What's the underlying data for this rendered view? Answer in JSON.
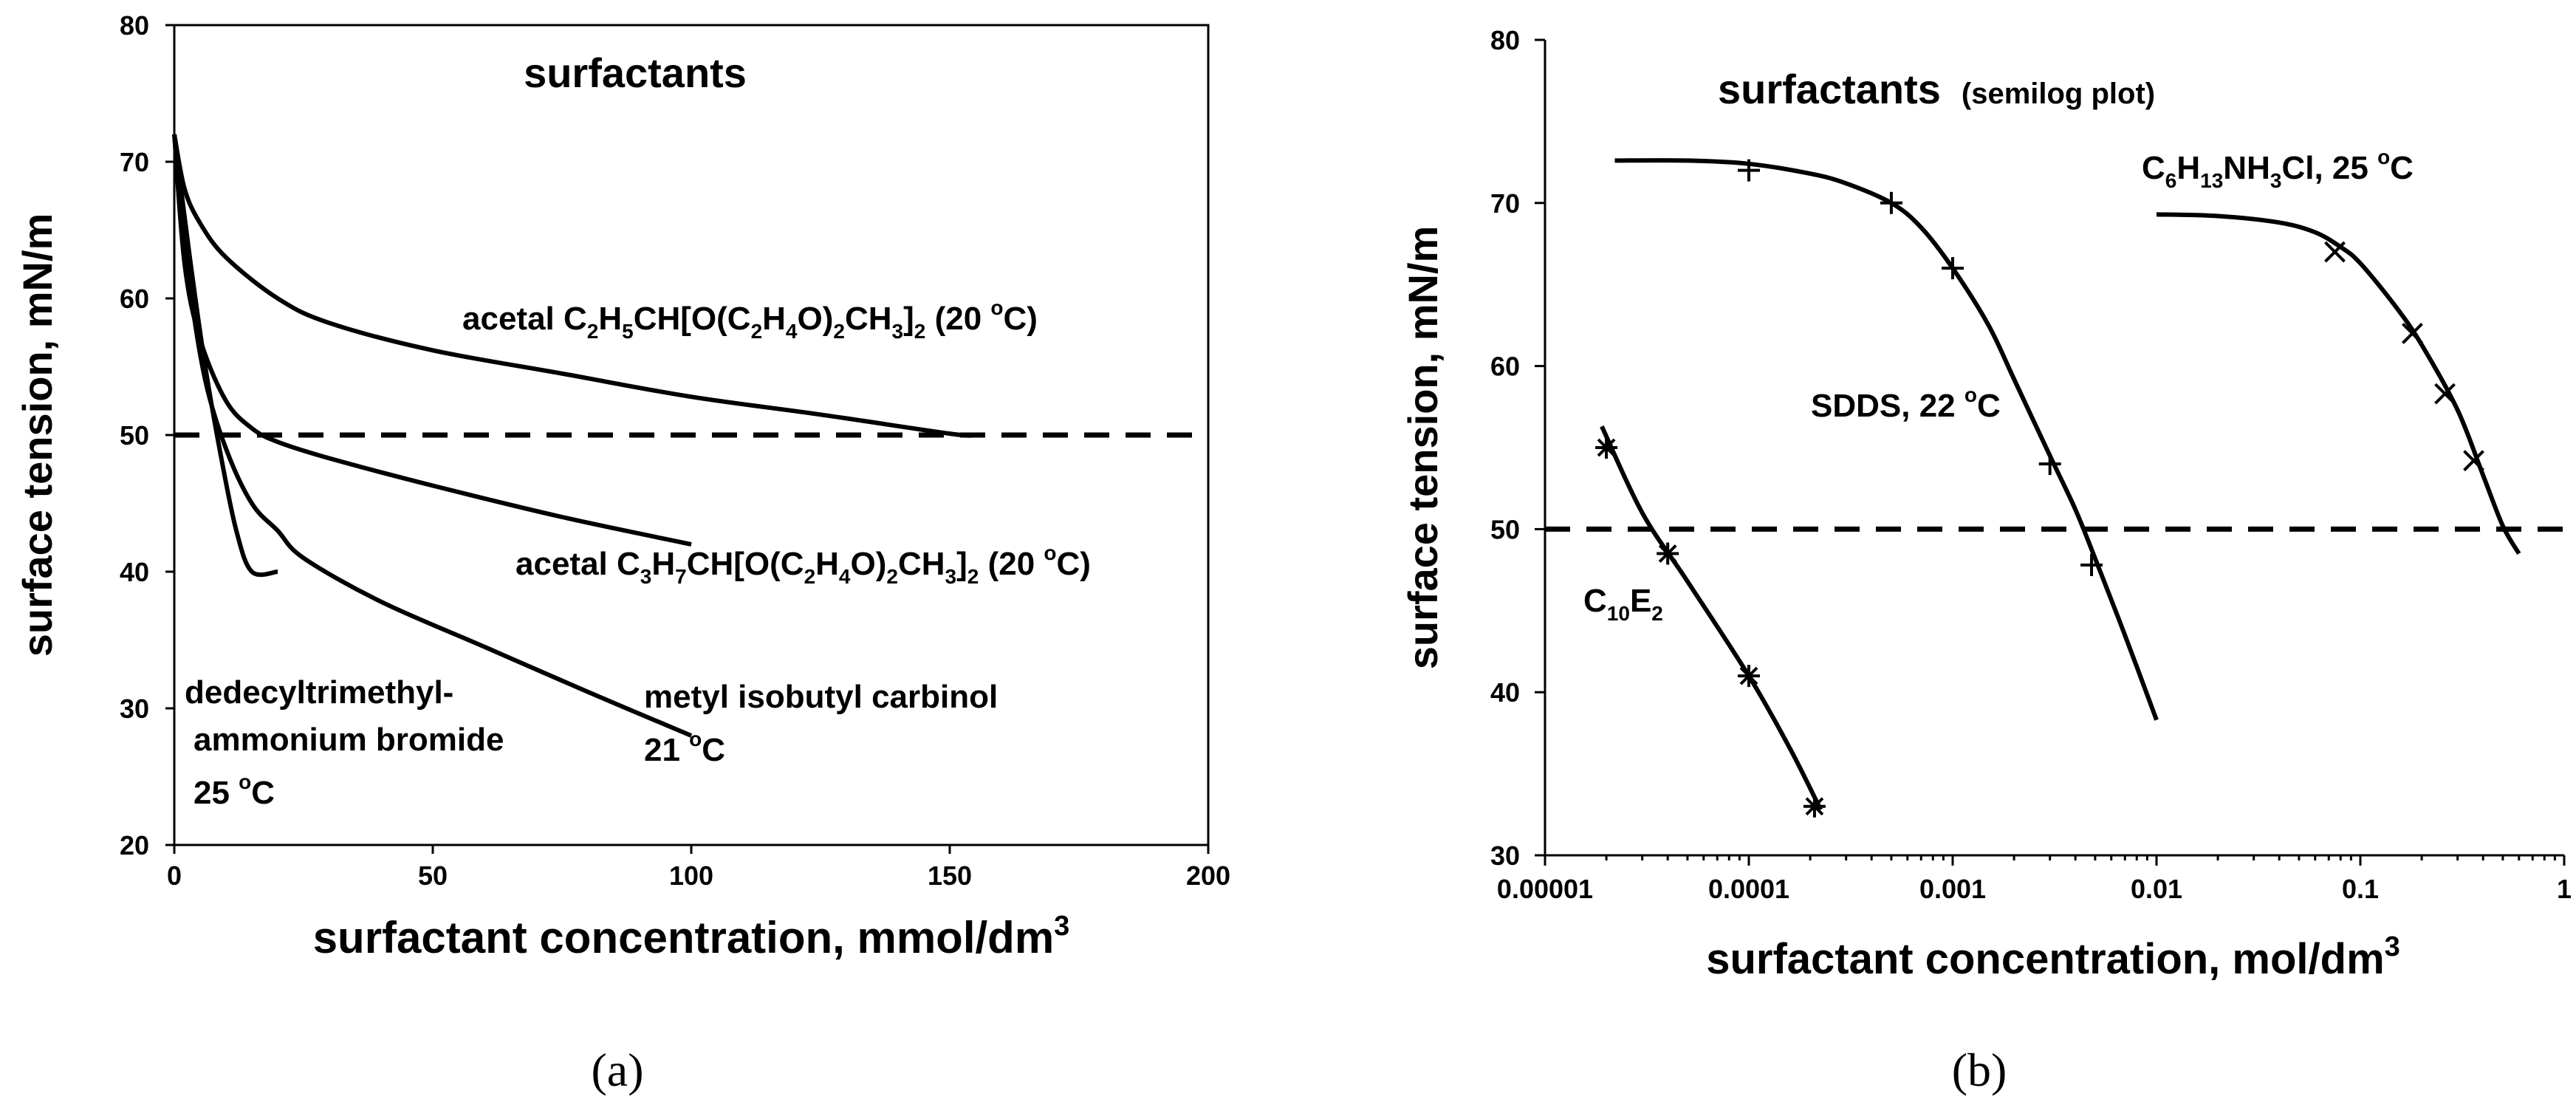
{
  "captions": {
    "a": "(a)",
    "b": "(b)"
  },
  "chart_data": [
    {
      "type": "line",
      "panel": "a",
      "title": "surfactants",
      "xlabel": "surfactant concentration, mmol/dm",
      "xlabel_sup": "3",
      "ylabel": "surface tension, mN/m",
      "xlim": [
        0,
        200
      ],
      "ylim": [
        20,
        80
      ],
      "xticks": [
        "0",
        "50",
        "100",
        "150",
        "200"
      ],
      "yticks": [
        "20",
        "30",
        "40",
        "50",
        "60",
        "70",
        "80"
      ],
      "hline": 50,
      "grid": false,
      "series": [
        {
          "x": [
            0,
            2,
            5,
            10,
            20,
            30,
            50,
            75,
            100,
            125,
            150,
            155
          ],
          "y": [
            72,
            68,
            65.5,
            63,
            60,
            58.2,
            56.2,
            54.5,
            52.8,
            51.5,
            50.1,
            50
          ]
        },
        {
          "x": [
            0,
            2,
            5,
            10,
            15,
            20,
            30,
            50,
            75,
            100
          ],
          "y": [
            72,
            62.5,
            57,
            52.5,
            50.5,
            49.5,
            48.3,
            46.3,
            44,
            42
          ]
        },
        {
          "x": [
            0,
            3,
            6,
            10,
            15,
            20,
            25,
            40,
            60,
            80,
            100
          ],
          "y": [
            72,
            61,
            54,
            49,
            45,
            43,
            41,
            37.8,
            34.5,
            31.2,
            28
          ]
        },
        {
          "x": [
            0,
            3,
            6,
            9,
            12,
            15,
            20
          ],
          "y": [
            72,
            63,
            55,
            48.5,
            43,
            40,
            40
          ]
        }
      ],
      "labels": {
        "acetal1": {
          "pre": "acetal C",
          "s1": "2",
          "m1": "H",
          "s2": "5",
          "m2": "CH[O(C",
          "s3": "2",
          "m3": "H",
          "s4": "4",
          "m4": "O)",
          "s5": "2",
          "m5": "CH",
          "s6": "3",
          "m6": "]",
          "s7": "2",
          "m7": " (20 ",
          "sup": "o",
          "post": "C)"
        },
        "acetal2": {
          "pre": "acetal C",
          "s1": "3",
          "m1": "H",
          "s2": "7",
          "m2": "CH[O(C",
          "s3": "2",
          "m3": "H",
          "s4": "4",
          "m4": "O)",
          "s5": "2",
          "m5": "CH",
          "s6": "3",
          "m6": "]",
          "s7": "2",
          "m7": " (20 ",
          "sup": "o",
          "post": "C)"
        },
        "dtab": {
          "line1": "dedecyltrimethyl-",
          "line2": "ammonium bromide",
          "line3_pre": "25 ",
          "line3_sup": "o",
          "line3_post": "C"
        },
        "mibc": {
          "line1": "metyl isobutyl carbinol",
          "line2_pre": "21 ",
          "line2_sup": "o",
          "line2_post": "C"
        }
      }
    },
    {
      "type": "line",
      "panel": "b",
      "title": "surfactants",
      "subtitle": "(semilog plot)",
      "xlabel": "surfactant concentration, mol/dm",
      "xlabel_sup": "3",
      "ylabel": "surface tension, mN/m",
      "xscale": "log",
      "xlim": [
        1e-05,
        1
      ],
      "ylim": [
        30,
        80
      ],
      "xticks": [
        "0.00001",
        "0.0001",
        "0.001",
        "0.01",
        "0.1",
        "1"
      ],
      "yticks": [
        "30",
        "40",
        "50",
        "60",
        "70",
        "80"
      ],
      "hline": 50,
      "grid": false,
      "series": [
        {
          "x": [
            2e-05,
            4e-05,
            0.0001,
            0.00021
          ],
          "y": [
            55,
            48.5,
            41,
            33
          ],
          "marker": "*"
        },
        {
          "x": [
            0.0001,
            0.0005,
            0.001,
            0.003,
            0.0048
          ],
          "y": [
            72,
            70,
            66,
            54,
            47.8
          ],
          "marker": "+"
        },
        {
          "x": [
            0.075,
            0.18,
            0.26,
            0.36
          ],
          "y": [
            67,
            62,
            58.3,
            54.2
          ],
          "marker": "x"
        }
      ],
      "curves": [
        {
          "x": [
            1.9e-05,
            3e-05,
            5e-05,
            0.0001,
            0.00016,
            0.000225
          ],
          "y": [
            56.3,
            51,
            46.8,
            41,
            36.5,
            32.8
          ]
        },
        {
          "x": [
            2.2e-05,
            5e-05,
            0.0001,
            0.0002,
            0.0003,
            0.0005,
            0.0007,
            0.001,
            0.0015,
            0.002,
            0.003,
            0.004,
            0.005,
            0.007,
            0.01
          ],
          "y": [
            72.6,
            72.6,
            72.4,
            71.8,
            71.2,
            70,
            68.5,
            66,
            62.5,
            59.2,
            54.5,
            51.2,
            48.2,
            43.5,
            38.3
          ]
        },
        {
          "x": [
            0.01,
            0.02,
            0.04,
            0.06,
            0.08,
            0.1,
            0.15,
            0.2,
            0.3,
            0.4,
            0.5,
            0.6
          ],
          "y": [
            69.3,
            69.2,
            68.8,
            68.2,
            67.3,
            66.3,
            63.6,
            61.3,
            57.3,
            53.3,
            50.2,
            48.5
          ]
        }
      ],
      "labels": {
        "c10e2": {
          "pre": "C",
          "sub": "10",
          "mid": "E",
          "sub2": "2"
        },
        "sdds": {
          "text": "SDDS, 22 ",
          "sup": "o",
          "post": "C"
        },
        "c6": {
          "pre": "C",
          "s1": "6",
          "m1": "H",
          "s2": "13",
          "m2": "NH",
          "s3": "3",
          "m3": "Cl, 25 ",
          "sup": "o",
          "post": "C"
        }
      }
    }
  ]
}
